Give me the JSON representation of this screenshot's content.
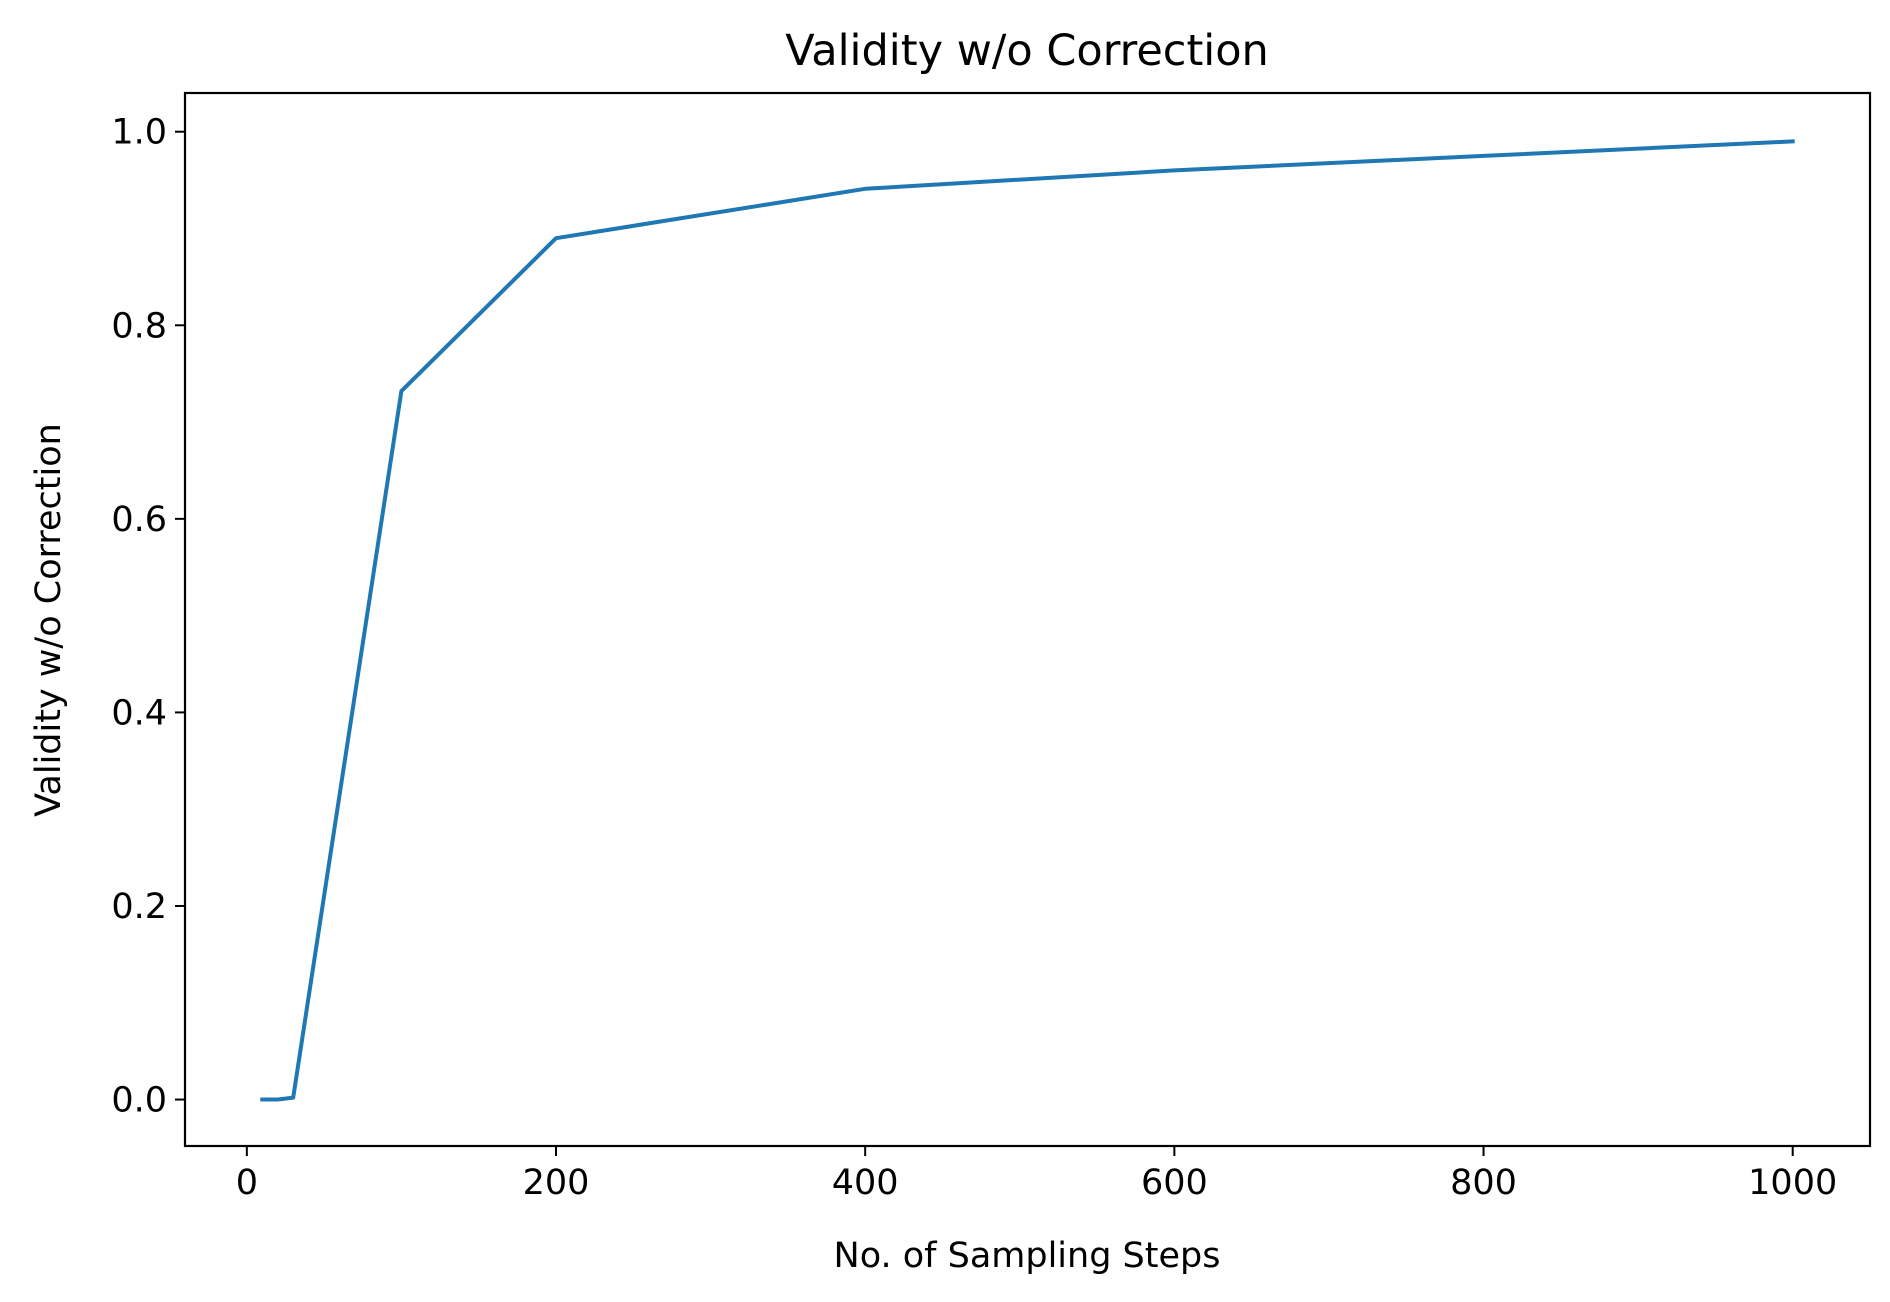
{
  "chart_data": {
    "type": "line",
    "title": "Validity w/o Correction",
    "xlabel": "No. of Sampling Steps",
    "ylabel": "Validity w/o Correction",
    "xlim": [
      -40,
      1050
    ],
    "ylim": [
      -0.048,
      1.04
    ],
    "xticks": [
      0,
      200,
      400,
      600,
      800,
      1000
    ],
    "xtick_labels": [
      "0",
      "200",
      "400",
      "600",
      "800",
      "1000"
    ],
    "yticks": [
      0.0,
      0.2,
      0.4,
      0.6,
      0.8,
      1.0
    ],
    "ytick_labels": [
      "0.0",
      "0.2",
      "0.4",
      "0.6",
      "0.8",
      "1.0"
    ],
    "grid": false,
    "series": [
      {
        "color": "#1f77b4",
        "x": [
          10,
          20,
          30,
          100,
          200,
          400,
          600,
          800,
          1000
        ],
        "y": [
          0.0,
          0.0,
          0.002,
          0.732,
          0.89,
          0.941,
          0.96,
          0.975,
          0.99
        ]
      }
    ]
  }
}
